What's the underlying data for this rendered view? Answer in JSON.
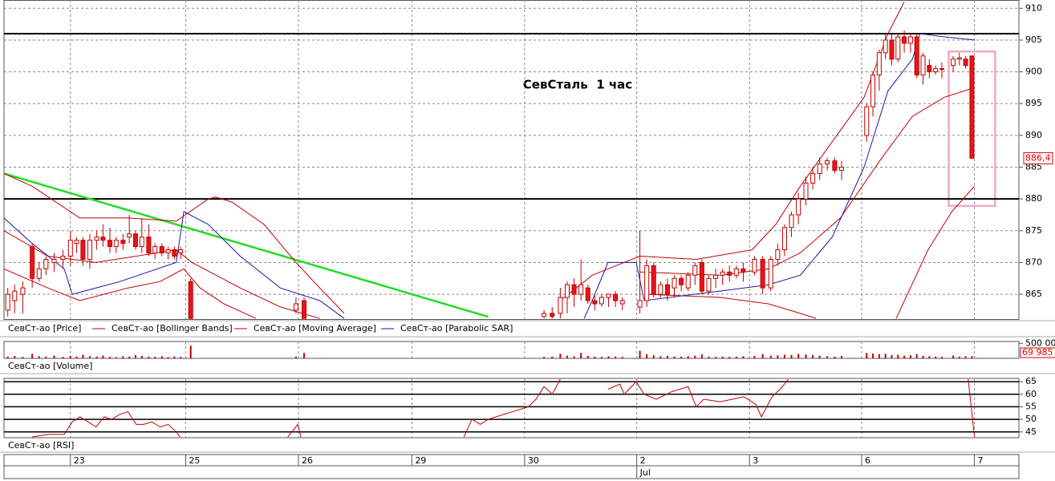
{
  "chart_data": [
    {
      "type": "candlestick",
      "name": "СевСт-ао [Price]",
      "title": "СевСталь  1 час",
      "x": [
        0.6,
        1.7,
        3,
        4.5,
        5.6,
        6.7,
        8,
        9.4,
        10.6,
        11.6,
        12.6,
        13.7,
        14.8,
        15.8,
        16.9,
        17.9,
        19,
        20,
        21,
        22,
        23.1,
        24.1,
        25.2,
        26.2,
        27.2,
        28.2,
        29.8,
        46.6,
        47.9,
        86.2,
        87.5,
        88.8,
        89.9,
        91,
        92.1,
        93.2,
        94.3,
        95.4,
        96.5,
        97.6,
        98.7,
        101.5,
        102.6,
        103.7,
        104.8,
        105.9,
        107,
        108.1,
        109.2,
        110.3,
        111.4,
        112.5,
        113.6,
        114.7,
        115.8,
        116.9,
        118,
        119.8,
        121.1,
        122.4,
        123.5,
        124.6,
        125.7,
        126.8,
        128,
        129.1,
        130.2,
        131.4,
        132.6,
        133.7,
        137.7,
        138.7,
        139.7,
        140.7,
        141.7,
        142.7,
        143.7,
        144.7,
        145.7,
        146.7,
        147.7,
        148.7,
        149.7,
        151.5,
        152.5,
        153.5,
        154.5
      ],
      "open": [
        862.5,
        864,
        865,
        872.5,
        867.5,
        869,
        870,
        870.5,
        871,
        873,
        873.5,
        870.5,
        873.5,
        874,
        873.5,
        872.5,
        873.5,
        874,
        874.5,
        872.5,
        874,
        871.5,
        872.5,
        871.5,
        872,
        871.5,
        867,
        862.5,
        864,
        861.5,
        862,
        862,
        864.5,
        866.5,
        865,
        866,
        864,
        863.5,
        864.5,
        865,
        863.5,
        863,
        864,
        869.5,
        865,
        866.5,
        866,
        867.5,
        866,
        868,
        870,
        865.5,
        867.5,
        868,
        868.5,
        868,
        869,
        868.5,
        870.5,
        866,
        870.5,
        872,
        875.5,
        877.5,
        880,
        882.5,
        884,
        885.5,
        886,
        884.5,
        890,
        894.5,
        899.5,
        903,
        905,
        902,
        905.5,
        904.5,
        905.5,
        899.5,
        901,
        900,
        900.5,
        901,
        902,
        902,
        902.5
      ],
      "high": [
        866,
        866.5,
        867,
        873,
        870,
        871,
        871.5,
        872,
        875,
        874,
        874,
        874.5,
        875,
        876,
        875.5,
        874,
        874.5,
        877.5,
        875,
        877,
        876,
        873,
        873,
        872.5,
        872.5,
        872.5,
        867.5,
        864.5,
        864.5,
        862.5,
        863,
        866,
        867,
        867.5,
        870.5,
        866.5,
        865,
        865,
        865,
        865.5,
        864.5,
        875,
        870.5,
        870,
        867,
        867.5,
        868,
        868,
        868.5,
        870,
        870.5,
        868,
        869,
        869,
        869.5,
        869.5,
        870,
        871,
        871,
        871,
        873,
        876,
        878,
        881,
        883.5,
        885,
        886.5,
        886.5,
        886.5,
        886,
        895,
        900,
        903.5,
        906,
        906,
        906,
        906.5,
        906,
        906,
        903,
        902,
        901,
        901.5,
        902.5,
        903,
        902.5,
        902.5
      ],
      "low": [
        861.5,
        862,
        862,
        866,
        867,
        868,
        868.5,
        869,
        869.5,
        871.5,
        869.5,
        869,
        872,
        872.5,
        871.5,
        871.5,
        872,
        873,
        872,
        871.5,
        871,
        870.5,
        871,
        870.5,
        870.5,
        870.5,
        861.2,
        862,
        861.2,
        861.2,
        861.2,
        861.2,
        862,
        863,
        864,
        863.5,
        862.5,
        863,
        863,
        863,
        862.5,
        862,
        863,
        864.5,
        864.5,
        864,
        864.5,
        865.5,
        865.5,
        866.5,
        865,
        865,
        866,
        866.5,
        867,
        867.5,
        867,
        868,
        865,
        865.5,
        869.5,
        871,
        874,
        876,
        879,
        881.5,
        883,
        884.5,
        884,
        883,
        889,
        893,
        897,
        902,
        901,
        901.5,
        903,
        903,
        899,
        898,
        899,
        899.5,
        899,
        900,
        901,
        900.5,
        886.4
      ],
      "close": [
        865,
        865.5,
        866,
        867.5,
        869,
        870.5,
        870.5,
        871,
        873.5,
        873.5,
        870.5,
        873.5,
        874,
        873.5,
        872.5,
        873.5,
        873,
        874.5,
        872.5,
        874,
        871.5,
        872.5,
        871.5,
        872,
        871,
        872,
        861.2,
        863.5,
        861.2,
        862,
        861.5,
        864.5,
        866.5,
        865,
        866.5,
        864,
        863.5,
        864.5,
        865,
        864,
        864,
        864,
        869.5,
        865,
        866.5,
        865,
        867.5,
        866.5,
        868,
        869.5,
        865.5,
        867.5,
        868,
        868.5,
        868,
        869,
        868.5,
        870.5,
        866,
        870.5,
        872,
        875.5,
        877.5,
        880,
        882.5,
        884,
        885.5,
        886,
        884.5,
        885,
        894.5,
        899.5,
        903,
        905,
        902,
        905.5,
        904.5,
        905.5,
        899.5,
        902.5,
        900,
        900.5,
        900.5,
        902,
        902.2,
        901,
        886.4
      ],
      "up_color": "#ffffff",
      "down_color": "#e8141c",
      "candle_edge": "#c00000",
      "last_value_label": "886,4",
      "xlim": [
        0,
        162
      ],
      "ylim": [
        861.1,
        911.3
      ],
      "yticks": [
        865,
        870,
        875,
        880,
        885,
        890,
        895,
        900,
        905,
        910
      ],
      "xticks": [
        {
          "value": 10.6,
          "label": "23"
        },
        {
          "value": 29,
          "label": "25"
        },
        {
          "value": 47,
          "label": "26"
        },
        {
          "value": 65.1,
          "label": "29"
        },
        {
          "value": 83.1,
          "label": "30"
        },
        {
          "value": 101,
          "label": "2"
        },
        {
          "value": 119,
          "label": "3"
        },
        {
          "value": 136.9,
          "label": "6"
        },
        {
          "value": 154.9,
          "label": "7"
        }
      ],
      "month_labels": [
        {
          "value": 101,
          "label": "Jul"
        }
      ],
      "grid": true,
      "overlays": [
        {
          "name": "СевСт-ао [Bollinger Bands]",
          "color": "#c00000",
          "lines": [
            {
              "x": [
                0,
                4.5,
                12.1,
                19.8,
                27.5,
                32.6,
                33.8,
                36.4,
                41.5,
                46.6,
                50.4,
                54.3,
                null,
                88.8,
                93.9,
                101.5,
                110.5,
                119.4,
                123.2,
                127.1,
                132.2,
                137.3,
                141.1,
                143.7
              ],
              "values": [
                884,
                882,
                877,
                877,
                876.5,
                880,
                880.3,
                879.5,
                876,
                870,
                866,
                862,
                null,
                864,
                868,
                871,
                870.5,
                872,
                876,
                882,
                889,
                896,
                906,
                911
              ]
            },
            {
              "x": [
                0,
                7,
                12.1,
                19.8,
                24.9,
                28.7,
                31.3,
                35.1,
                40.2,
                null,
                102.8,
                114.3,
                122,
                127.1,
                129.6,
                null,
                142.4,
                147.5,
                151.3,
                154.9
              ],
              "values": [
                869,
                866,
                864,
                866,
                867,
                869,
                866,
                863.5,
                861.2,
                null,
                865,
                864.5,
                863.5,
                862,
                861.2,
                null,
                861.2,
                872,
                878,
                882
              ]
            }
          ]
        },
        {
          "name": "СевСт-ао [Moving Average]",
          "color": "#c00000",
          "lines": [
            {
              "x": [
                0,
                7,
                14.7,
                27.5,
                30,
                37.7,
                44.1,
                50.4,
                null,
                101.5,
                114.3,
                122,
                127.1,
                133.5,
                139.8,
                145,
                150.1,
                154.9
              ],
              "values": [
                875,
                871,
                870,
                872,
                870,
                866,
                863,
                861.2,
                null,
                868.5,
                868,
                869,
                871.5,
                877,
                886,
                893,
                896,
                897.5
              ]
            }
          ]
        },
        {
          "name": "СевСт-ао [Parabolic SAR]",
          "color": "#1a1a9c",
          "lines": [
            {
              "x": [
                0,
                4.5,
                9.6,
                10.9,
                18.5,
                27.5,
                28.7,
                32.6,
                37.7,
                44.1,
                50.4,
                54.3,
                null,
                92.6,
                93.9,
                96.4,
                100.9,
                102.2,
                114.3,
                122,
                127.1,
                132.2,
                137.3,
                141.1,
                145,
                146.2,
                150.1,
                154.9
              ],
              "values": [
                877,
                873,
                869,
                865,
                867,
                870,
                878,
                876,
                871,
                866,
                864,
                861.2,
                null,
                861.2,
                864,
                870,
                870,
                864,
                865.5,
                866.5,
                868,
                874,
                885,
                897,
                902,
                906,
                905.5,
                905
              ]
            }
          ]
        }
      ],
      "levels": [
        906,
        880
      ],
      "level_color": "#000000",
      "trendline": {
        "color": "#22dd22",
        "x": [
          0,
          77.3
        ],
        "values": [
          884,
          861.45
        ]
      },
      "highlight": {
        "color": "#f2a8c4",
        "x": [
          150.8,
          158.2
        ],
        "values": [
          903.2,
          878.9
        ]
      }
    },
    {
      "type": "bar",
      "name": "СевСт-ао [Volume]",
      "color": "#c00000",
      "values": [
        60000,
        80000,
        50000,
        150000,
        70000,
        60000,
        90000,
        50000,
        80000,
        60000,
        120000,
        70000,
        60000,
        90000,
        50000,
        40000,
        70000,
        60000,
        110000,
        80000,
        60000,
        50000,
        70000,
        40000,
        60000,
        50000,
        420000,
        60000,
        180000,
        50000,
        60000,
        150000,
        90000,
        70000,
        180000,
        80000,
        60000,
        50000,
        70000,
        60000,
        50000,
        250000,
        140000,
        100000,
        70000,
        80000,
        60000,
        60000,
        70000,
        90000,
        130000,
        60000,
        50000,
        60000,
        50000,
        60000,
        70000,
        80000,
        140000,
        90000,
        100000,
        120000,
        110000,
        150000,
        130000,
        110000,
        90000,
        70000,
        60000,
        80000,
        180000,
        160000,
        140000,
        150000,
        110000,
        120000,
        90000,
        100000,
        140000,
        80000,
        70000,
        60000,
        50000,
        90000,
        60000,
        70000,
        69985
      ],
      "last_value_label": "69 985",
      "ylim": [
        0,
        560000
      ],
      "yticks": [
        {
          "value": 500000,
          "label": "500 000"
        }
      ]
    },
    {
      "type": "line",
      "name": "СевСт-ао [RSI]",
      "color": "#c00000",
      "x": [
        4.5,
        7,
        9.6,
        10.9,
        12.1,
        13.4,
        14.7,
        16,
        17.2,
        18.5,
        19.8,
        21.1,
        22.3,
        23.6,
        24.9,
        26.2,
        27.5,
        28.1,
        null,
        45.3,
        46.9,
        47.4,
        null,
        73.4,
        74.7,
        76,
        77.3,
        78.5,
        81.1,
        83.7,
        84.9,
        86.2,
        87.5,
        88.8,
        null,
        96.4,
        98.3,
        99,
        100.9,
        102.2,
        104.1,
        106.6,
        109.2,
        110.5,
        111.7,
        114.3,
        118.1,
        120,
        120.9,
        122.6,
        123.9,
        125.2,
        null,
        153.9,
        154.9
      ],
      "values": [
        43,
        44,
        44,
        49,
        51,
        49,
        47,
        51,
        50,
        52,
        53,
        48,
        48,
        49,
        47,
        48,
        45,
        43,
        null,
        43,
        48,
        43,
        null,
        43,
        50,
        48,
        50,
        51,
        53,
        55,
        58,
        63,
        60,
        66,
        null,
        62,
        64,
        60,
        65,
        60,
        58,
        61,
        63,
        55,
        58,
        57,
        59,
        56,
        51,
        59,
        62,
        66,
        null,
        66,
        43
      ],
      "ylim": [
        42.7,
        66.3
      ],
      "yticks": [
        45,
        50,
        55,
        60,
        65
      ],
      "grid_color": "#000000"
    }
  ]
}
